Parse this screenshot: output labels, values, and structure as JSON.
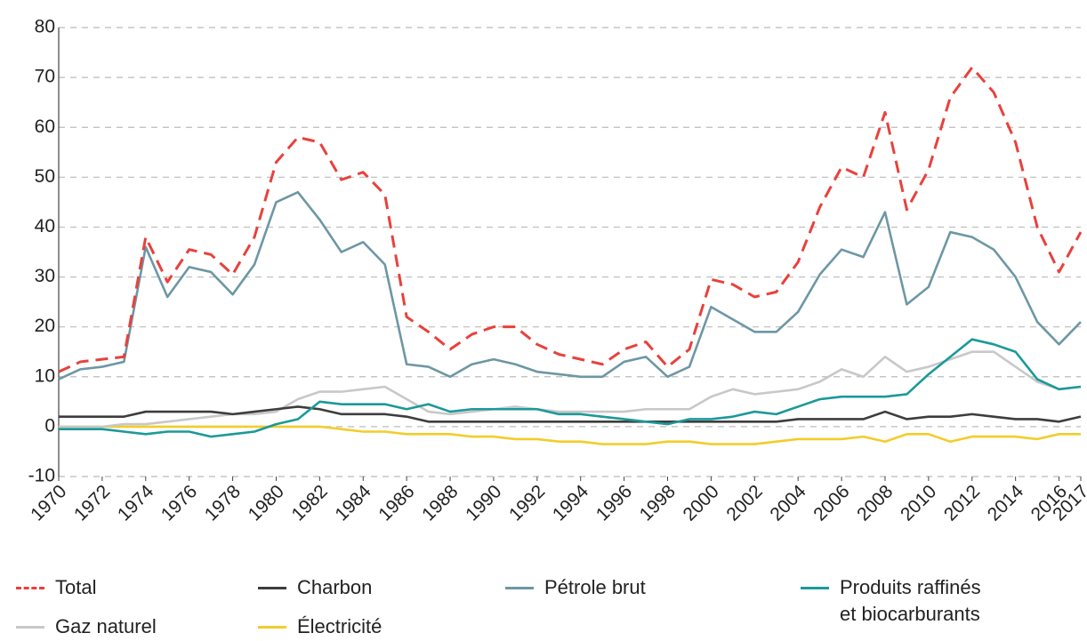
{
  "chart_data": {
    "type": "line",
    "x": [
      1970,
      1971,
      1972,
      1973,
      1974,
      1975,
      1976,
      1977,
      1978,
      1979,
      1980,
      1981,
      1982,
      1983,
      1984,
      1985,
      1986,
      1987,
      1988,
      1989,
      1990,
      1991,
      1992,
      1993,
      1994,
      1995,
      1996,
      1997,
      1998,
      1999,
      2000,
      2001,
      2002,
      2003,
      2004,
      2005,
      2006,
      2007,
      2008,
      2009,
      2010,
      2011,
      2012,
      2013,
      2014,
      2015,
      2016,
      2017
    ],
    "xlim": [
      1970,
      2017
    ],
    "xticks": [
      1970,
      1972,
      1974,
      1976,
      1978,
      1980,
      1982,
      1984,
      1986,
      1988,
      1990,
      1992,
      1994,
      1996,
      1998,
      2000,
      2002,
      2004,
      2006,
      2008,
      2010,
      2012,
      2014,
      2016,
      2017
    ],
    "ylim": [
      -10,
      80
    ],
    "yticks": [
      -10,
      0,
      10,
      20,
      30,
      40,
      50,
      60,
      70,
      80
    ],
    "grid": true,
    "series": [
      {
        "name": "Total",
        "color": "#e8413c",
        "dashed": true,
        "values": [
          11,
          13,
          13.5,
          14,
          38,
          29,
          35.5,
          34.5,
          30.5,
          38,
          53,
          58,
          57,
          49.5,
          51,
          46.5,
          22,
          19,
          15.5,
          18.5,
          20,
          20,
          16.5,
          14.5,
          13.5,
          12.5,
          15.5,
          17,
          12,
          15.5,
          29.5,
          28.5,
          26,
          27,
          33,
          44,
          52,
          50,
          63,
          43.5,
          51.5,
          66,
          72,
          67,
          57,
          40,
          31,
          39
        ]
      },
      {
        "name": "Charbon",
        "color": "#3d3d3d",
        "values": [
          2,
          2,
          2,
          2,
          3,
          3,
          3,
          3,
          2.5,
          3,
          3.5,
          4,
          3.5,
          2.5,
          2.5,
          2.5,
          2,
          1,
          1,
          1,
          1,
          1,
          1,
          1,
          1,
          1,
          1,
          1,
          1,
          1,
          1,
          1,
          1,
          1,
          1.5,
          1.5,
          1.5,
          1.5,
          3,
          1.5,
          2,
          2,
          2.5,
          2,
          1.5,
          1.5,
          1,
          2
        ]
      },
      {
        "name": "Pétrole brut",
        "color": "#6d97a4",
        "values": [
          9.5,
          11.5,
          12,
          13,
          36,
          26,
          32,
          31,
          26.5,
          32.5,
          45,
          47,
          41.5,
          35,
          37,
          32.5,
          12.5,
          12,
          10,
          12.5,
          13.5,
          12.5,
          11,
          10.5,
          10,
          10,
          13,
          14,
          10,
          12,
          24,
          21.5,
          19,
          19,
          23,
          30.5,
          35.5,
          34,
          43,
          24.5,
          28,
          39,
          38,
          35.5,
          30,
          21,
          16.5,
          21
        ]
      },
      {
        "name": "Produits raffinés\net biocarburants",
        "color": "#1b9999",
        "values": [
          -0.5,
          -0.5,
          -0.5,
          -1,
          -1.5,
          -1,
          -1,
          -2,
          -1.5,
          -1,
          0.5,
          1.5,
          5,
          4.5,
          4.5,
          4.5,
          3.5,
          4.5,
          3,
          3.5,
          3.5,
          3.5,
          3.5,
          2.5,
          2.5,
          2,
          1.5,
          1,
          0.5,
          1.5,
          1.5,
          2,
          3,
          2.5,
          4,
          5.5,
          6,
          6,
          6,
          6.5,
          10.5,
          14,
          17.5,
          16.5,
          15,
          9.5,
          7.5,
          8
        ]
      },
      {
        "name": "Gaz naturel",
        "color": "#c8c8c8",
        "values": [
          0,
          0,
          0,
          0.5,
          0.5,
          1,
          1.5,
          2,
          2.5,
          2.5,
          3,
          5.5,
          7,
          7,
          7.5,
          8,
          5.5,
          3,
          2.5,
          3,
          3.5,
          4,
          3.5,
          3,
          3,
          3,
          3,
          3.5,
          3.5,
          3.5,
          6,
          7.5,
          6.5,
          7,
          7.5,
          9,
          11.5,
          10,
          14,
          11,
          12,
          13.5,
          15,
          15,
          12,
          9,
          7.5,
          8
        ]
      },
      {
        "name": "Électricité",
        "color": "#f2cd2a",
        "values": [
          0,
          0,
          0,
          0,
          0,
          0,
          0,
          0,
          0,
          0,
          0,
          0,
          0,
          -0.5,
          -1,
          -1,
          -1.5,
          -1.5,
          -1.5,
          -2,
          -2,
          -2.5,
          -2.5,
          -3,
          -3,
          -3.5,
          -3.5,
          -3.5,
          -3,
          -3,
          -3.5,
          -3.5,
          -3.5,
          -3,
          -2.5,
          -2.5,
          -2.5,
          -2,
          -3,
          -1.5,
          -1.5,
          -3,
          -2,
          -2,
          -2,
          -2.5,
          -1.5,
          -1.5
        ]
      }
    ]
  }
}
